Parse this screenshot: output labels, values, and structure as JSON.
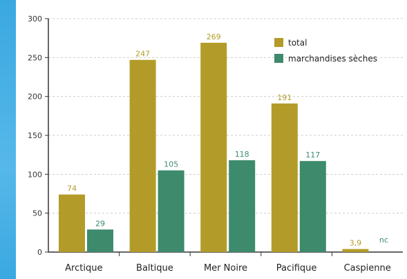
{
  "chart_data": {
    "type": "bar",
    "categories": [
      "Arctique",
      "Baltique",
      "Mer Noire",
      "Pacifique",
      "Caspienne"
    ],
    "series": [
      {
        "name": "total",
        "values": [
          74,
          247,
          269,
          191,
          3.9
        ],
        "labels": [
          "74",
          "247",
          "269",
          "191",
          "3,9"
        ],
        "color": "#b39b29"
      },
      {
        "name": "marchandises sèches",
        "values": [
          29,
          105,
          118,
          117,
          null
        ],
        "labels": [
          "29",
          "105",
          "118",
          "117",
          "nc"
        ],
        "color": "#3d8a6d"
      }
    ],
    "yticks": [
      0,
      50,
      100,
      150,
      200,
      250,
      300
    ],
    "ylim": [
      0,
      300
    ],
    "grid": true,
    "legend_position": "top-right",
    "title": "",
    "xlabel": "",
    "ylabel": ""
  },
  "colors": {
    "side_band": "#3aa8e0",
    "grid": "#cccccc",
    "axis": "#333333",
    "label_total": "#b39b29",
    "label_sec": "#3d8a6d"
  }
}
